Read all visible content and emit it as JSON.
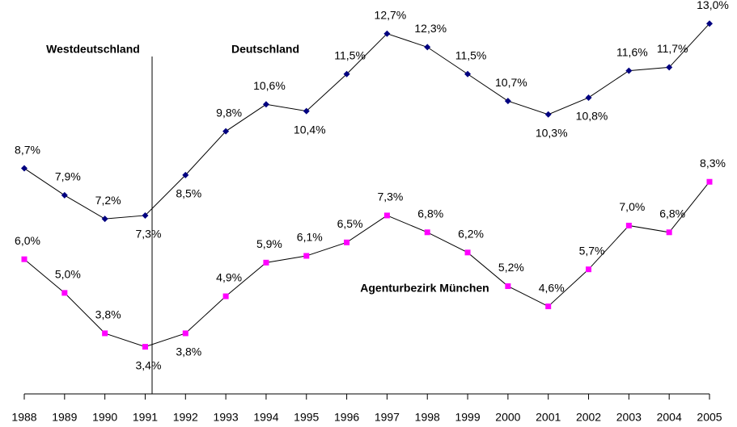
{
  "chart_data": {
    "type": "line",
    "categories": [
      "1988",
      "1989",
      "1990",
      "1991",
      "1992",
      "1993",
      "1994",
      "1995",
      "1996",
      "1997",
      "1998",
      "1999",
      "2000",
      "2001",
      "2002",
      "2003",
      "2004",
      "2005"
    ],
    "series": [
      {
        "color": "#000080",
        "marker": "diamond",
        "values": [
          8.7,
          7.9,
          7.2,
          7.3,
          8.5,
          9.8,
          10.6,
          10.4,
          11.5,
          12.7,
          12.3,
          11.5,
          10.7,
          10.3,
          10.8,
          11.6,
          11.7,
          13.0
        ],
        "value_labels": [
          "8,7%",
          "7,9%",
          "7,2%",
          "7,3%",
          "8,5%",
          "9,8%",
          "10,6%",
          "10,4%",
          "11,5%",
          "12,7%",
          "12,3%",
          "11,5%",
          "10,7%",
          "10,3%",
          "10,8%",
          "11,6%",
          "11,7%",
          "13,0%"
        ]
      },
      {
        "color": "#ff00ff",
        "marker": "square",
        "values": [
          6.0,
          5.0,
          3.8,
          3.4,
          3.8,
          4.9,
          5.9,
          6.1,
          6.5,
          7.3,
          6.8,
          6.2,
          5.2,
          4.6,
          5.7,
          7.0,
          6.8,
          8.3
        ],
        "value_labels": [
          "6,0%",
          "5,0%",
          "3,8%",
          "3,4%",
          "3,8%",
          "4,9%",
          "5,9%",
          "6,1%",
          "6,5%",
          "7,3%",
          "6,8%",
          "6,2%",
          "5,2%",
          "4,6%",
          "5,7%",
          "7,0%",
          "6,8%",
          "8,3%"
        ]
      }
    ],
    "ylim": [
      2,
      13.7
    ],
    "annotations": [
      "Westdeutschland",
      "Deutschland",
      "Agenturbezirk München"
    ]
  }
}
